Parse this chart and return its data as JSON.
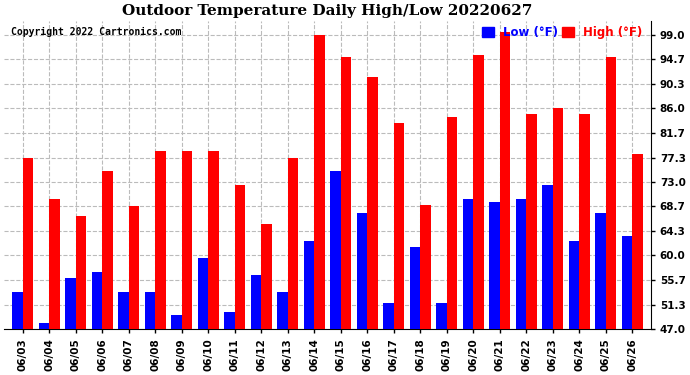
{
  "title": "Outdoor Temperature Daily High/Low 20220627",
  "copyright": "Copyright 2022 Cartronics.com",
  "legend_low": "Low (°F)",
  "legend_high": "High (°F)",
  "dates": [
    "06/03",
    "06/04",
    "06/05",
    "06/06",
    "06/07",
    "06/08",
    "06/09",
    "06/10",
    "06/11",
    "06/12",
    "06/13",
    "06/14",
    "06/15",
    "06/16",
    "06/17",
    "06/18",
    "06/19",
    "06/20",
    "06/21",
    "06/22",
    "06/23",
    "06/24",
    "06/25",
    "06/26"
  ],
  "highs": [
    77.3,
    70.0,
    67.0,
    75.0,
    68.7,
    78.5,
    78.5,
    78.5,
    72.5,
    65.5,
    77.3,
    99.0,
    95.0,
    91.5,
    83.5,
    69.0,
    84.5,
    95.5,
    99.5,
    85.0,
    86.0,
    85.0,
    95.0,
    78.0
  ],
  "lows": [
    53.5,
    48.0,
    56.0,
    57.0,
    53.5,
    53.5,
    49.5,
    59.5,
    50.0,
    56.5,
    53.5,
    62.5,
    75.0,
    67.5,
    51.5,
    61.5,
    51.5,
    70.0,
    69.5,
    70.0,
    72.5,
    62.5,
    67.5,
    63.5
  ],
  "high_color": "#ff0000",
  "low_color": "#0000ff",
  "bg_color": "#ffffff",
  "ylim_min": 47.0,
  "ylim_max": 101.5,
  "yticks": [
    47.0,
    51.3,
    55.7,
    60.0,
    64.3,
    68.7,
    73.0,
    77.3,
    81.7,
    86.0,
    90.3,
    94.7,
    99.0
  ],
  "bar_width": 0.4,
  "grid_color": "#bbbbbb",
  "title_fontsize": 11,
  "tick_fontsize": 7.5,
  "legend_fontsize": 8.5,
  "copyright_fontsize": 7
}
